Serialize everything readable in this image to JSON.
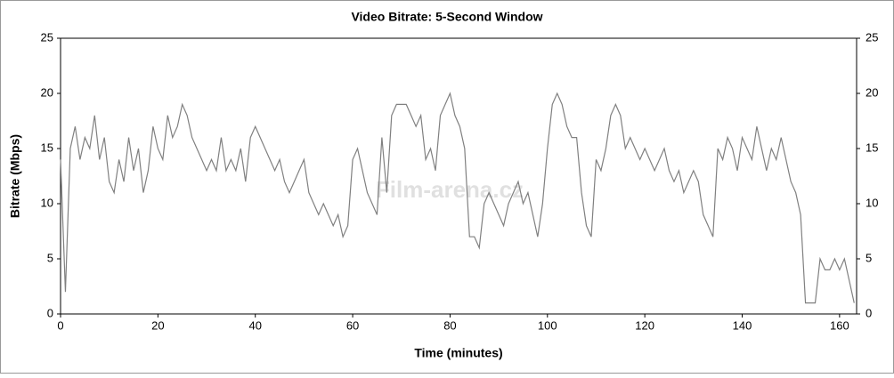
{
  "chart_data": {
    "type": "line",
    "title": "Video Bitrate: 5-Second Window",
    "x_label": "Time (minutes)",
    "y_label": "Bitrate (Mbps)",
    "watermark": "Film-arena.cz",
    "x": [
      0,
      1,
      2,
      3,
      4,
      5,
      6,
      7,
      8,
      9,
      10,
      11,
      12,
      13,
      14,
      15,
      16,
      17,
      18,
      19,
      20,
      21,
      22,
      23,
      24,
      25,
      26,
      27,
      28,
      29,
      30,
      31,
      32,
      33,
      34,
      35,
      36,
      37,
      38,
      39,
      40,
      41,
      42,
      43,
      44,
      45,
      46,
      47,
      48,
      49,
      50,
      51,
      52,
      53,
      54,
      55,
      56,
      57,
      58,
      59,
      60,
      61,
      62,
      63,
      64,
      65,
      66,
      67,
      68,
      69,
      70,
      71,
      72,
      73,
      74,
      75,
      76,
      77,
      78,
      79,
      80,
      81,
      82,
      83,
      84,
      85,
      86,
      87,
      88,
      89,
      90,
      91,
      92,
      93,
      94,
      95,
      96,
      97,
      98,
      99,
      100,
      101,
      102,
      103,
      104,
      105,
      106,
      107,
      108,
      109,
      110,
      111,
      112,
      113,
      114,
      115,
      116,
      117,
      118,
      119,
      120,
      121,
      122,
      123,
      124,
      125,
      126,
      127,
      128,
      129,
      130,
      131,
      132,
      133,
      134,
      135,
      136,
      137,
      138,
      139,
      140,
      141,
      142,
      143,
      144,
      145,
      146,
      147,
      148,
      149,
      150,
      151,
      152,
      153,
      154,
      155,
      156,
      157,
      158,
      159,
      160,
      161,
      162,
      163
    ],
    "series": [
      {
        "name": "Bitrate",
        "color": "#808080",
        "axis": "y",
        "values": [
          14,
          2,
          15,
          17,
          14,
          16,
          15,
          18,
          14,
          16,
          12,
          11,
          14,
          12,
          16,
          13,
          15,
          11,
          13,
          17,
          15,
          14,
          18,
          16,
          17,
          19,
          18,
          16,
          15,
          14,
          13,
          14,
          13,
          16,
          13,
          14,
          13,
          15,
          12,
          16,
          17,
          16,
          15,
          14,
          13,
          14,
          12,
          11,
          12,
          13,
          14,
          11,
          10,
          9,
          10,
          9,
          8,
          9,
          7,
          8,
          14,
          15,
          13,
          11,
          10,
          9,
          16,
          11,
          18,
          19,
          19,
          19,
          18,
          17,
          18,
          14,
          15,
          13,
          18,
          19,
          20,
          18,
          17,
          15,
          7,
          7,
          6,
          10,
          11,
          10,
          9,
          8,
          10,
          11,
          12,
          10,
          11,
          9,
          7,
          10,
          15,
          19,
          20,
          19,
          17,
          16,
          16,
          11,
          8,
          7,
          14,
          13,
          15,
          18,
          19,
          18,
          15,
          16,
          15,
          14,
          15,
          14,
          13,
          14,
          15,
          13,
          12,
          13,
          11,
          12,
          13,
          12,
          9,
          8,
          7,
          15,
          14,
          16,
          15,
          13,
          16,
          15,
          14,
          17,
          15,
          13,
          15,
          14,
          16,
          14,
          12,
          11,
          9,
          1,
          1,
          1,
          5,
          4,
          4,
          5,
          4,
          5,
          3,
          1
        ]
      }
    ],
    "xlim": [
      0,
      163.5
    ],
    "xticks": [
      0,
      20,
      40,
      60,
      80,
      100,
      120,
      140,
      160
    ],
    "ylim": [
      0,
      25
    ],
    "yticks": [
      0,
      5,
      10,
      15,
      20,
      25
    ],
    "y2lim": [
      0,
      25
    ],
    "y2ticks": [
      0,
      5,
      10,
      15,
      20,
      25
    ],
    "grid": false
  }
}
